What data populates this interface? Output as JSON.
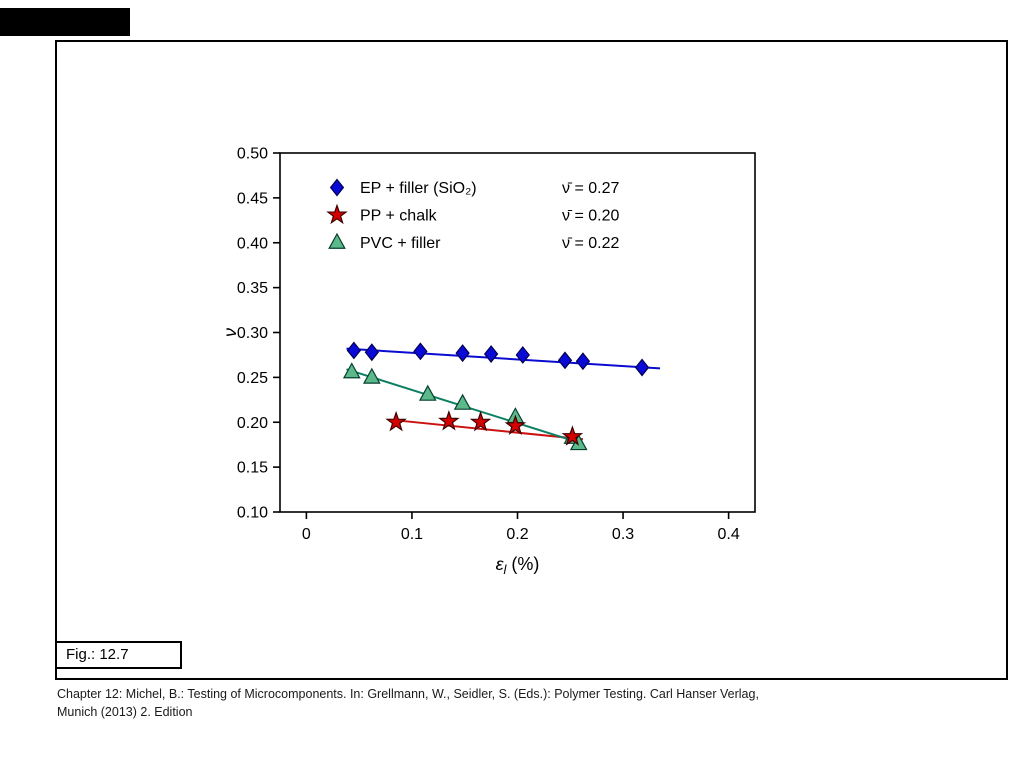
{
  "figure": {
    "fig_label": "Fig.: 12.7",
    "caption_line1": "Chapter 12: Michel, B.: Testing of Microcomponents. In: Grellmann, W., Seidler, S. (Eds.): Polymer Testing. Carl Hanser Verlag,",
    "caption_line2": "Munich (2013) 2. Edition"
  },
  "chart_data": {
    "type": "scatter",
    "title": "",
    "xlabel": {
      "base": "ε",
      "sub": "l",
      "rest": " (%)"
    },
    "ylabel": "ν",
    "xlim": [
      -0.025,
      0.425
    ],
    "ylim": [
      0.1,
      0.5
    ],
    "xticks": [
      "0",
      "0.1",
      "0.2",
      "0.3",
      "0.4"
    ],
    "yticks": [
      "0.10",
      "0.15",
      "0.20",
      "0.25",
      "0.30",
      "0.35",
      "0.40",
      "0.45",
      "0.50"
    ],
    "grid": false,
    "legend_position": "top-left-inside",
    "series": [
      {
        "name": "EP + filler (SiO₂)",
        "stat": "ν̄ = 0.27",
        "marker": "diamond",
        "color": "#0a0ad0",
        "marker_fill": "#0a0ad8",
        "marker_stroke": "#000050",
        "points": [
          [
            0.045,
            0.28
          ],
          [
            0.062,
            0.278
          ],
          [
            0.108,
            0.279
          ],
          [
            0.148,
            0.277
          ],
          [
            0.175,
            0.276
          ],
          [
            0.205,
            0.275
          ],
          [
            0.245,
            0.269
          ],
          [
            0.262,
            0.268
          ],
          [
            0.318,
            0.261
          ]
        ],
        "fit_line": [
          [
            0.038,
            0.282
          ],
          [
            0.335,
            0.26
          ]
        ]
      },
      {
        "name": "PP + chalk",
        "stat": "ν̄ = 0.20",
        "marker": "star",
        "color": "#cc1111",
        "marker_fill": "#d40000",
        "marker_stroke": "#3c0000",
        "points": [
          [
            0.085,
            0.2
          ],
          [
            0.135,
            0.201
          ],
          [
            0.165,
            0.2
          ],
          [
            0.198,
            0.196
          ],
          [
            0.252,
            0.184
          ]
        ],
        "fit_line": [
          [
            0.078,
            0.203
          ],
          [
            0.262,
            0.181
          ]
        ]
      },
      {
        "name": "PVC + filler",
        "stat": "ν̄ = 0.22",
        "marker": "triangle",
        "color": "#0e7f62",
        "marker_fill": "#5cb98a",
        "marker_stroke": "#063f2e",
        "points": [
          [
            0.043,
            0.256
          ],
          [
            0.062,
            0.25
          ],
          [
            0.115,
            0.231
          ],
          [
            0.148,
            0.221
          ],
          [
            0.198,
            0.206
          ],
          [
            0.252,
            0.183
          ],
          [
            0.258,
            0.176
          ]
        ],
        "fit_line": [
          [
            0.038,
            0.259
          ],
          [
            0.262,
            0.176
          ]
        ]
      }
    ]
  }
}
